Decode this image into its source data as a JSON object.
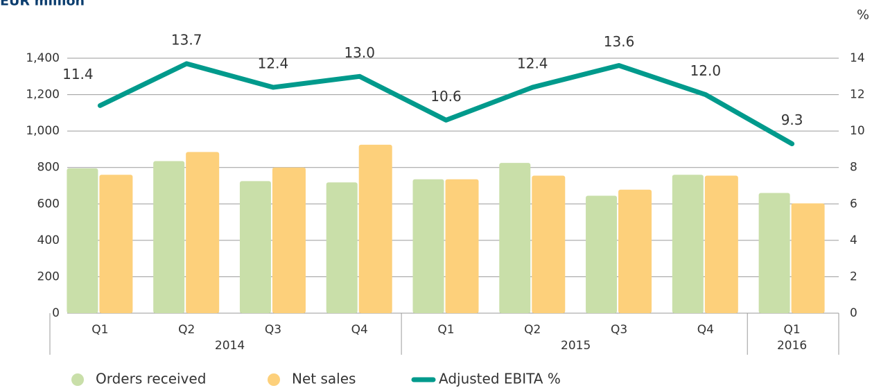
{
  "chart_data": {
    "type": "bar",
    "title": "EUR million",
    "y2_label": "%",
    "groups": [
      {
        "label": "2014",
        "categories": [
          "Q1",
          "Q2",
          "Q3",
          "Q4"
        ]
      },
      {
        "label": "2015",
        "categories": [
          "Q1",
          "Q2",
          "Q3",
          "Q4"
        ]
      },
      {
        "label": "2016",
        "categories": [
          "Q1"
        ]
      }
    ],
    "series": [
      {
        "name": "Orders received",
        "type": "bar",
        "color": "#c9dfa9",
        "values": [
          795,
          835,
          725,
          718,
          735,
          825,
          645,
          760,
          660
        ]
      },
      {
        "name": "Net sales",
        "type": "bar",
        "color": "#fdd07b",
        "values": [
          760,
          885,
          800,
          925,
          735,
          755,
          678,
          755,
          603
        ]
      },
      {
        "name": "Adjusted EBITA %",
        "type": "line",
        "axis": "y2",
        "color": "#009a8c",
        "values": [
          11.4,
          13.7,
          12.4,
          13.0,
          10.6,
          12.4,
          13.6,
          12.0,
          9.3
        ],
        "value_labels": [
          "11.4",
          "13.7",
          "12.4",
          "13.0",
          "10.6",
          "12.4",
          "13.6",
          "12.0",
          "9.3"
        ]
      }
    ],
    "ylim": [
      0,
      1400
    ],
    "yticks": [
      0,
      200,
      400,
      600,
      800,
      {
        "value": 1000,
        "label": "1,000"
      },
      {
        "value": 1200,
        "label": "1,200"
      },
      {
        "value": 1400,
        "label": "1,400"
      }
    ],
    "y2lim": [
      0,
      14
    ],
    "y2ticks": [
      0,
      2,
      4,
      6,
      8,
      10,
      12,
      14
    ],
    "grid": true,
    "legend": "bottom"
  }
}
